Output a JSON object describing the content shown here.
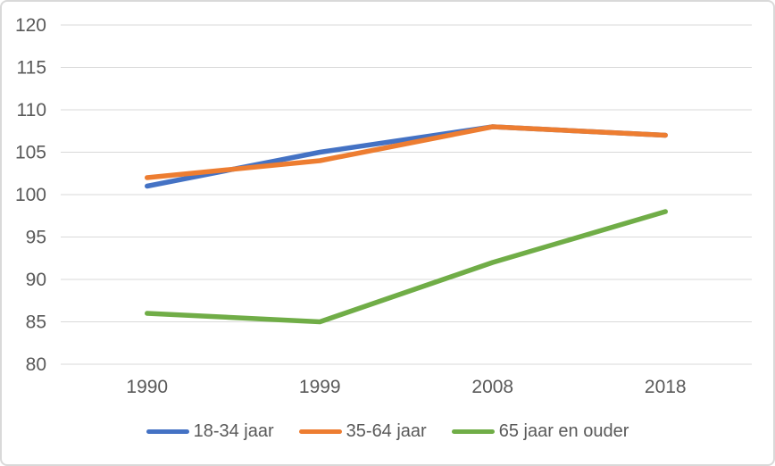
{
  "chart_data": {
    "type": "line",
    "categories": [
      "1990",
      "1999",
      "2008",
      "2018"
    ],
    "series": [
      {
        "name": "18-34 jaar",
        "color": "#4472C4",
        "values": [
          101,
          105,
          108,
          107
        ]
      },
      {
        "name": "35-64 jaar",
        "color": "#ED7D31",
        "values": [
          102,
          104,
          108,
          107
        ]
      },
      {
        "name": "65 jaar en ouder",
        "color": "#70AD47",
        "values": [
          86,
          85,
          92,
          98
        ]
      }
    ],
    "title": "",
    "xlabel": "",
    "ylabel": "",
    "ylim": [
      80,
      120
    ],
    "yticks": [
      80,
      85,
      90,
      95,
      100,
      105,
      110,
      115,
      120
    ],
    "grid": true,
    "legend_position": "bottom",
    "axis_text_color": "#595959",
    "gridline_color": "#D9D9D9",
    "background_color": "#FFFFFF",
    "border_color": "#D9D9D9"
  }
}
